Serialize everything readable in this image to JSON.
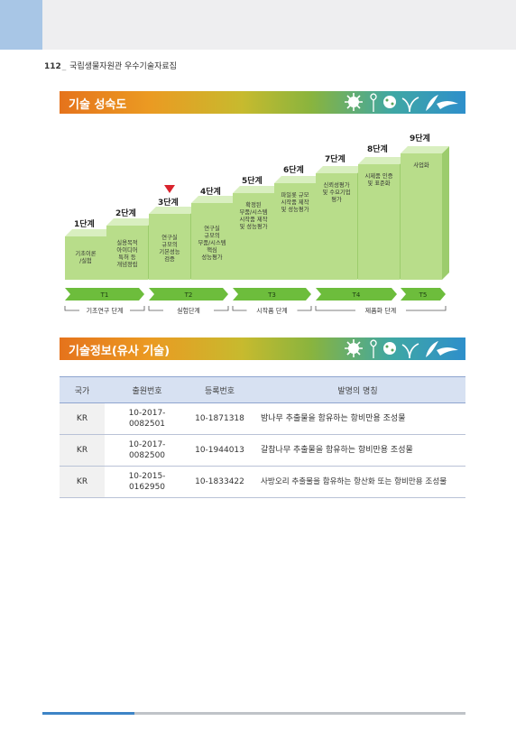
{
  "header": {
    "page_number": "112",
    "separator": "_",
    "title": "국립생물자원관 우수기술자료집"
  },
  "section1": {
    "title": "기술 성숙도"
  },
  "stages": [
    {
      "label": "1단계",
      "text": [
        "기초이론",
        "/실험"
      ]
    },
    {
      "label": "2단계",
      "text": [
        "실용목적",
        "아이디어",
        "특허 등",
        "개념정립"
      ]
    },
    {
      "label": "3단계",
      "text": [
        "연구실",
        "규모의",
        "기본성능",
        "검증"
      ]
    },
    {
      "label": "4단계",
      "text": [
        "연구실",
        "규모의",
        "부품/시스템",
        "핵심",
        "성능평가"
      ]
    },
    {
      "label": "5단계",
      "text": [
        "확정된",
        "부품/시스템",
        "시작품 제작",
        "및 성능평가"
      ]
    },
    {
      "label": "6단계",
      "text": [
        "파일롯 규모",
        "시작품 제작",
        "및 성능평가"
      ]
    },
    {
      "label": "7단계",
      "text": [
        "신뢰성평가",
        "및 수요기업",
        "평가"
      ]
    },
    {
      "label": "8단계",
      "text": [
        "시제품 인증",
        "및 표준화"
      ]
    },
    {
      "label": "9단계",
      "text": [
        "사업화"
      ]
    }
  ],
  "current_stage": 3,
  "colors": {
    "step_face": "#b8dd8a",
    "step_top": "#d9efc0",
    "step_side": "#9ccc6c",
    "marker": "#d9232d",
    "band": "#6dbd3c"
  },
  "bands": [
    {
      "label": "T1"
    },
    {
      "label": "T2"
    },
    {
      "label": "T3"
    },
    {
      "label": "T4"
    },
    {
      "label": "T5"
    }
  ],
  "phases": [
    {
      "label": "기초연구 단계"
    },
    {
      "label": "실험단계"
    },
    {
      "label": "시작품 단계"
    },
    {
      "label": "제품화 단계"
    }
  ],
  "section2": {
    "title": "기술정보(유사 기술)"
  },
  "table": {
    "headers": {
      "country": "국가",
      "application": "출원번호",
      "registration": "등록번호",
      "name": "발명의 명칭"
    },
    "rows": [
      {
        "country": "KR",
        "application_l1": "10-2017-",
        "application_l2": "0082501",
        "registration": "10-1871318",
        "name": "밤나무 추출물을 함유하는 항비만용 조성물"
      },
      {
        "country": "KR",
        "application_l1": "10-2017-",
        "application_l2": "0082500",
        "registration": "10-1944013",
        "name": "갈참나무 추출물을 함유하는 항비만용 조성물"
      },
      {
        "country": "KR",
        "application_l1": "10-2015-",
        "application_l2": "0162950",
        "registration": "10-1833422",
        "name": "사방오리 추출물을 함유하는 항산화 또는 항비만용 조성물"
      }
    ]
  }
}
